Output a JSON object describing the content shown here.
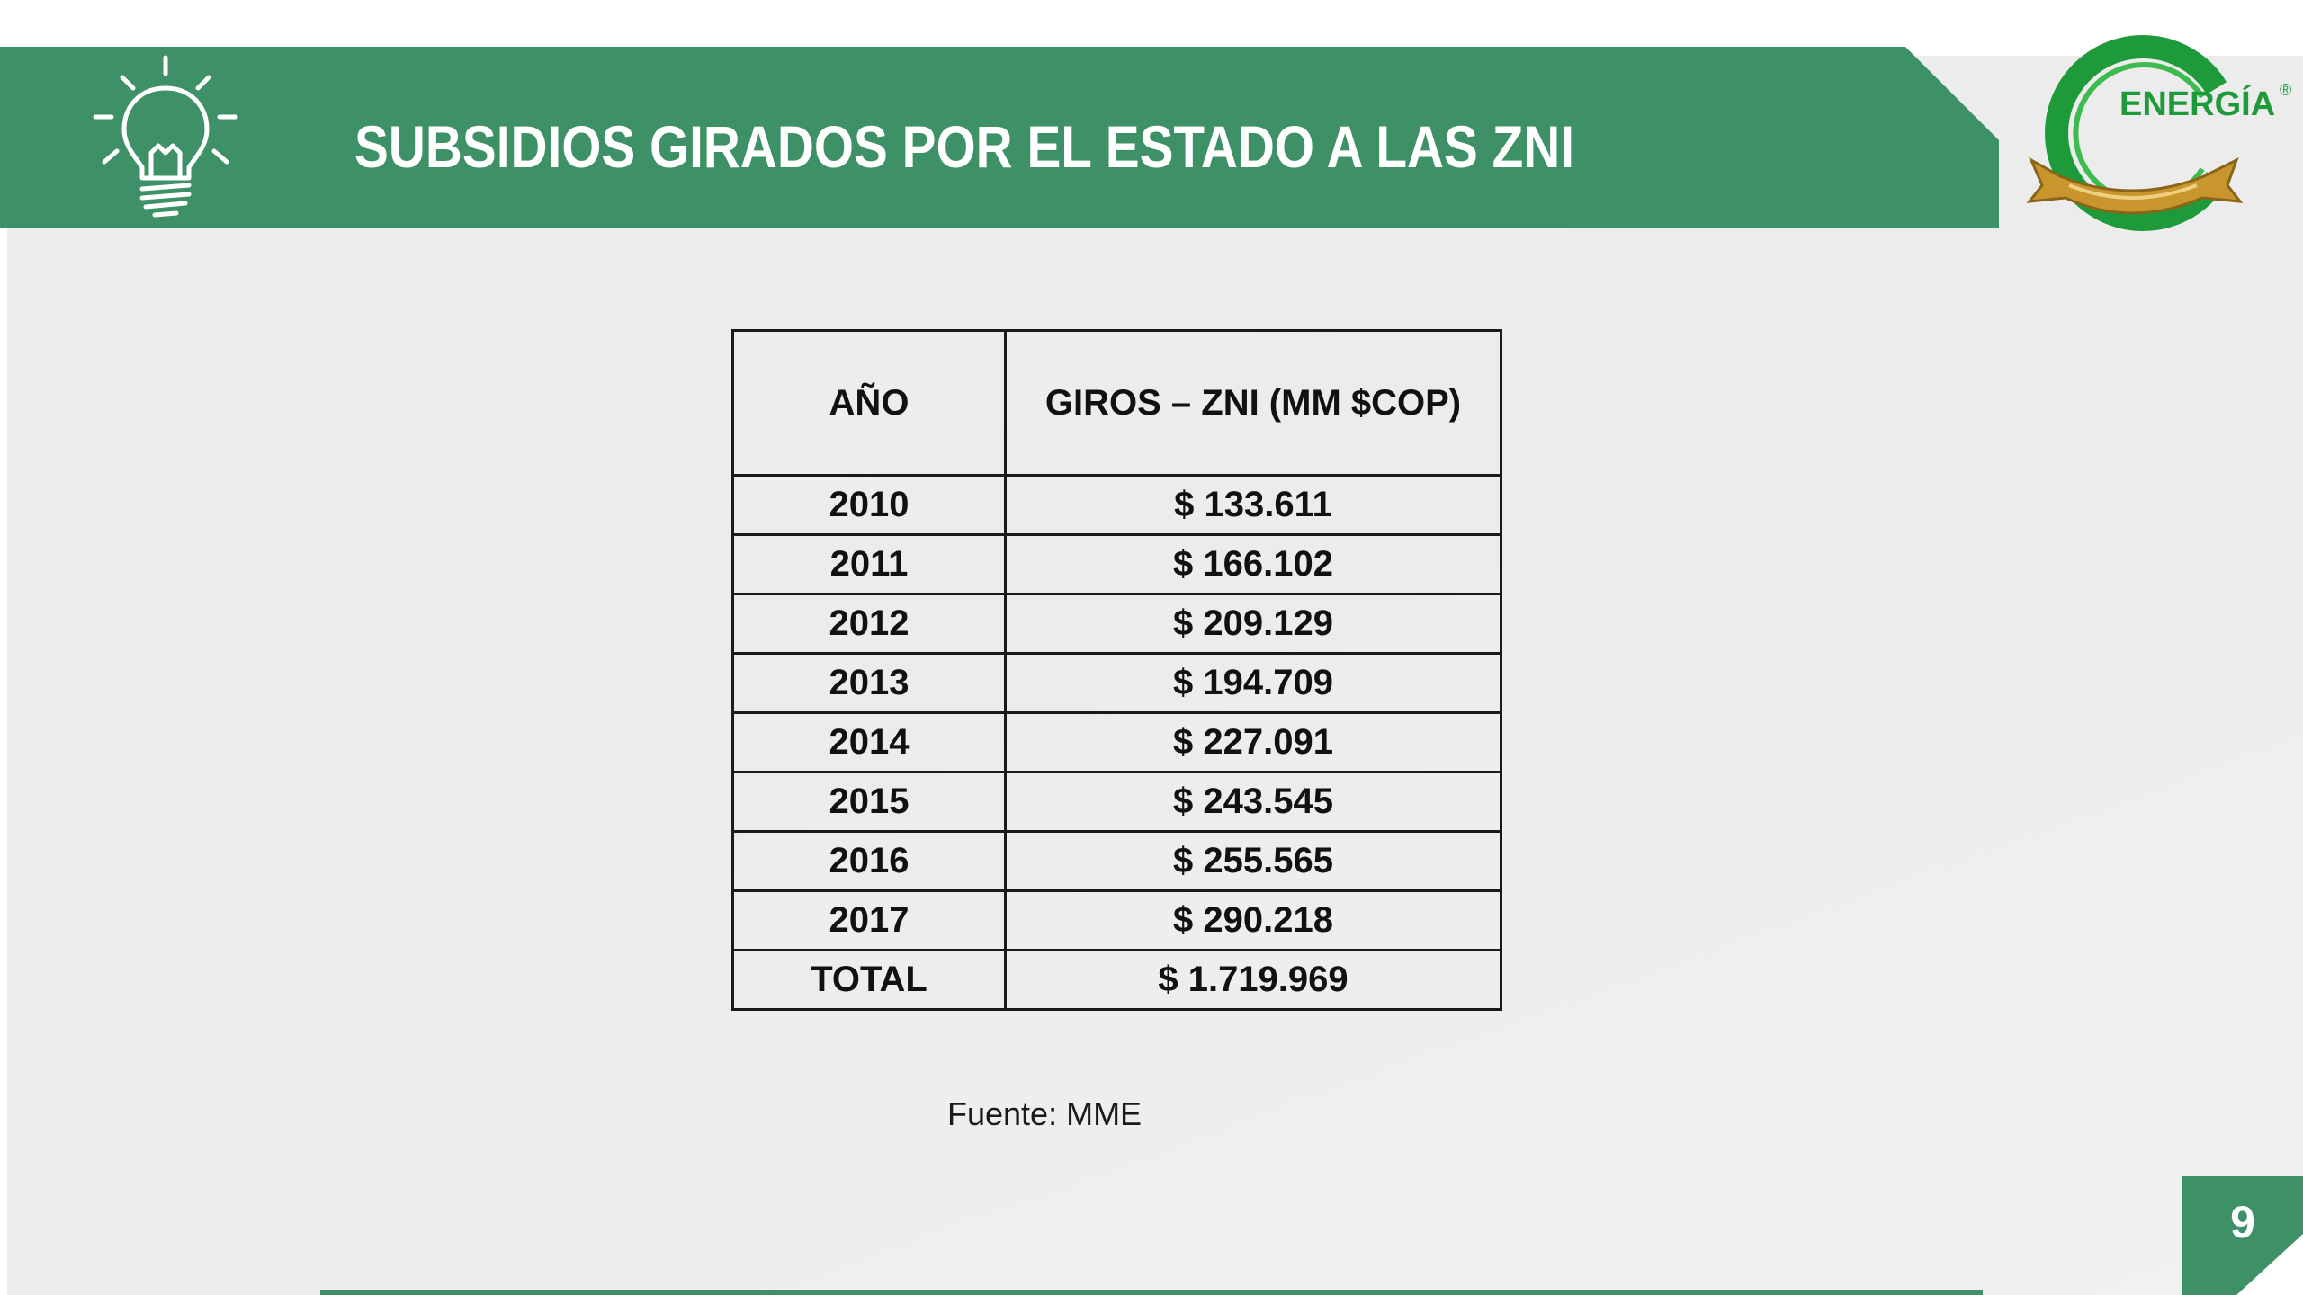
{
  "slide": {
    "title": "SUBSIDIOS GIRADOS POR EL ESTADO A LAS ZNI",
    "page_number": "9",
    "source_note": "Fuente: MME"
  },
  "logo": {
    "text": "ENERGÍA",
    "registered_mark": "®"
  },
  "table": {
    "headers": [
      "AÑO",
      "GIROS – ZNI (MM $COP)"
    ],
    "rows": [
      {
        "year": "2010",
        "amount": "$ 133.611"
      },
      {
        "year": "2011",
        "amount": "$ 166.102"
      },
      {
        "year": "2012",
        "amount": "$ 209.129"
      },
      {
        "year": "2013",
        "amount": "$ 194.709"
      },
      {
        "year": "2014",
        "amount": "$ 227.091"
      },
      {
        "year": "2015",
        "amount": "$ 243.545"
      },
      {
        "year": "2016",
        "amount": "$ 255.565"
      },
      {
        "year": "2017",
        "amount": "$ 290.218"
      }
    ],
    "total": {
      "label": "TOTAL",
      "amount": "$ 1.719.969"
    }
  },
  "icons": {
    "header_icon": "lightbulb-icon",
    "brand_logo": "energia-logo"
  },
  "colors": {
    "brand_green": "#3e9166",
    "logo_green": "#1f9a3a",
    "ribbon_gold": "#c9962e",
    "background": "#eeeeee"
  }
}
